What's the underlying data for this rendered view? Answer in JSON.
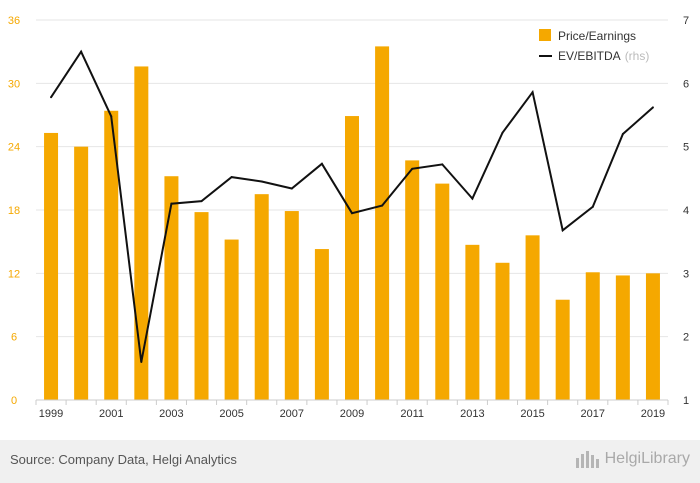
{
  "chart_data": {
    "type": "bar",
    "x_tick_labels": [
      "1999",
      "2001",
      "2003",
      "2005",
      "2007",
      "2009",
      "2011",
      "2013",
      "2015",
      "2017",
      "2019"
    ],
    "x": [
      1999,
      2000,
      2001,
      2002,
      2003,
      2004,
      2005,
      2006,
      2007,
      2008,
      2009,
      2010,
      2011,
      2012,
      2013,
      2014,
      2015,
      2016,
      2017,
      2018,
      2019
    ],
    "series": [
      {
        "name": "Price/Earnings",
        "type": "bar",
        "axis": "left",
        "color": "#f5a800",
        "values": [
          25.3,
          24.0,
          27.4,
          31.6,
          21.2,
          17.8,
          15.2,
          19.5,
          17.9,
          14.3,
          26.9,
          33.5,
          22.7,
          20.5,
          14.7,
          13.0,
          15.6,
          9.5,
          12.1,
          11.8,
          12.0
        ]
      },
      {
        "name": "EV/EBITDA",
        "name_suffix": "(rhs)",
        "type": "line",
        "axis": "right",
        "color": "#111111",
        "values": [
          5.78,
          6.5,
          5.48,
          1.6,
          4.1,
          4.14,
          4.52,
          4.45,
          4.34,
          4.73,
          3.95,
          4.07,
          4.65,
          4.72,
          4.18,
          5.22,
          5.86,
          3.68,
          4.05,
          5.2,
          5.62
        ]
      }
    ],
    "y_left": {
      "ticks": [
        "0",
        "6",
        "12",
        "18",
        "24",
        "30",
        "36"
      ],
      "range": [
        0,
        36
      ],
      "tick_color": "#f5a800"
    },
    "y_right": {
      "ticks": [
        "1",
        "2",
        "3",
        "4",
        "5",
        "6",
        "7"
      ],
      "range": [
        1,
        7
      ]
    },
    "grid": true,
    "legend_placement": "top-right"
  },
  "footer": {
    "source": "Source: Company Data, Helgi Analytics",
    "logo": "HelgiLibrary"
  }
}
